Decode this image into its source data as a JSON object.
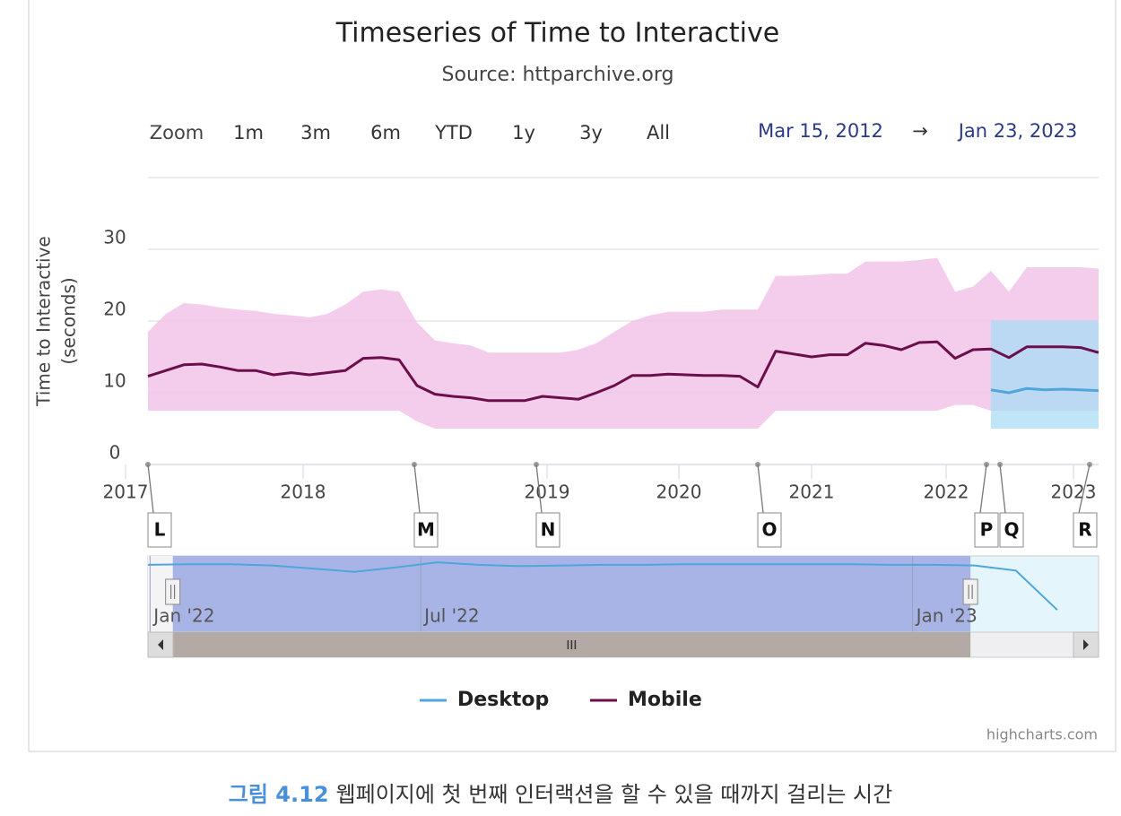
{
  "chart_data": {
    "type": "line",
    "title": "Timeseries of Time to Interactive",
    "subtitle": "Source: httparchive.org",
    "zoom": {
      "label": "Zoom",
      "buttons": [
        "1m",
        "3m",
        "6m",
        "YTD",
        "1y",
        "3y",
        "All"
      ]
    },
    "range": {
      "from": "Mar 15, 2012",
      "sep": "→",
      "to": "Jan 23, 2023"
    },
    "y_label": [
      "Time to Interactive",
      "(seconds)"
    ],
    "ylim": [
      0,
      40
    ],
    "yticks": [
      0,
      10,
      20,
      30
    ],
    "grid": true,
    "xlim": [
      0,
      53
    ],
    "xticks": [
      {
        "value": -1.25,
        "label": "2017"
      },
      {
        "value": 8.65,
        "label": "2018"
      },
      {
        "value": 22.25,
        "label": "2019"
      },
      {
        "value": 29.6,
        "label": "2020"
      },
      {
        "value": 37,
        "label": "2021"
      },
      {
        "value": 44.5,
        "label": "2022"
      },
      {
        "value": 51.6,
        "label": "2023"
      }
    ],
    "series": [
      {
        "name": "Desktop",
        "color": "#4ea6da",
        "band_color": "#a9dcf4",
        "values": [
          null,
          null,
          null,
          null,
          null,
          null,
          null,
          null,
          null,
          null,
          null,
          null,
          null,
          null,
          null,
          null,
          null,
          null,
          null,
          null,
          null,
          null,
          null,
          null,
          null,
          null,
          null,
          null,
          null,
          null,
          null,
          null,
          null,
          null,
          null,
          null,
          null,
          null,
          null,
          null,
          null,
          null,
          null,
          null,
          null,
          null,
          null,
          10.4,
          10,
          10.6,
          10.4,
          10.5,
          10.4,
          10.3
        ],
        "high": [
          null,
          null,
          null,
          null,
          null,
          null,
          null,
          null,
          null,
          null,
          null,
          null,
          null,
          null,
          null,
          null,
          null,
          null,
          null,
          null,
          null,
          null,
          null,
          null,
          null,
          null,
          null,
          null,
          null,
          null,
          null,
          null,
          null,
          null,
          null,
          null,
          null,
          null,
          null,
          null,
          null,
          null,
          null,
          null,
          null,
          null,
          null,
          20.1,
          20.1,
          20.1,
          20.1,
          20.1,
          20.1,
          20.1
        ],
        "low": [
          null,
          null,
          null,
          null,
          null,
          null,
          null,
          null,
          null,
          null,
          null,
          null,
          null,
          null,
          null,
          null,
          null,
          null,
          null,
          null,
          null,
          null,
          null,
          null,
          null,
          null,
          null,
          null,
          null,
          null,
          null,
          null,
          null,
          null,
          null,
          null,
          null,
          null,
          null,
          null,
          null,
          null,
          null,
          null,
          null,
          null,
          null,
          5,
          5,
          5,
          5,
          5,
          5,
          5
        ]
      },
      {
        "name": "Mobile",
        "color": "#6b0f4c",
        "band_color": "#f2c4ea",
        "values": [
          12.3,
          13.1,
          13.9,
          14,
          13.6,
          13.1,
          13.1,
          12.5,
          12.8,
          12.5,
          12.8,
          13.1,
          14.8,
          14.9,
          14.6,
          11,
          9.8,
          9.5,
          9.3,
          8.9,
          8.9,
          8.9,
          9.5,
          9.3,
          9.1,
          10,
          11,
          12.4,
          12.4,
          12.6,
          12.5,
          12.4,
          12.4,
          12.3,
          10.8,
          15.8,
          15.4,
          15,
          15.3,
          15.3,
          16.9,
          16.6,
          16,
          17,
          17.1,
          14.8,
          16,
          16.1,
          14.9,
          16.4,
          16.4,
          16.4,
          16.3,
          15.6
        ],
        "high": [
          18.5,
          21,
          22.5,
          22.3,
          21.9,
          21.6,
          21.4,
          21,
          20.8,
          20.5,
          21,
          22.3,
          24.1,
          24.4,
          24.1,
          19.8,
          17.3,
          16.9,
          16.6,
          15.6,
          15.6,
          15.6,
          15.6,
          15.6,
          16,
          16.9,
          18.5,
          20,
          20.8,
          21.3,
          21.3,
          21.3,
          21.6,
          21.6,
          21.6,
          26.3,
          26.3,
          26.4,
          26.6,
          26.6,
          28.3,
          28.3,
          28.3,
          28.5,
          28.8,
          24.1,
          24.8,
          27,
          24.1,
          27.5,
          27.5,
          27.5,
          27.5,
          27.3
        ],
        "low": [
          7.5,
          7.5,
          7.5,
          7.5,
          7.5,
          7.5,
          7.5,
          7.5,
          7.5,
          7.5,
          7.5,
          7.5,
          7.5,
          7.5,
          7.5,
          6,
          5,
          5,
          5,
          5,
          5,
          5,
          5,
          5,
          5,
          5,
          5,
          5,
          5,
          5,
          5,
          5,
          5,
          5,
          5,
          7.5,
          7.5,
          7.5,
          7.5,
          7.5,
          7.5,
          7.5,
          7.5,
          7.5,
          7.5,
          8.3,
          8.3,
          7.5,
          7.5,
          7.5,
          7.5,
          7.5,
          7.5,
          7.5
        ]
      }
    ],
    "flags": [
      {
        "label": "L",
        "x": 0
      },
      {
        "label": "M",
        "x": 14.85
      },
      {
        "label": "N",
        "x": 21.65
      },
      {
        "label": "O",
        "x": 34
      },
      {
        "label": "P",
        "x": 46.75
      },
      {
        "label": "Q",
        "x": 47.5
      },
      {
        "label": "R",
        "x": 52.5
      }
    ],
    "navigator": {
      "color": "#4ea6da",
      "xlim": [
        0,
        23
      ],
      "ylim": [
        0,
        12
      ],
      "selected": [
        0.6,
        19.9
      ],
      "xticks": [
        {
          "value": 0.05,
          "label": "Jan '22"
        },
        {
          "value": 6.6,
          "label": "Jul '22"
        },
        {
          "value": 18.5,
          "label": "Jan '23"
        }
      ],
      "values": [
        10.6,
        10.7,
        10.7,
        10.5,
        10,
        9.5,
        10.2,
        11,
        10.6,
        10.4,
        10.5,
        10.6,
        10.6,
        10.7,
        10.7,
        10.7,
        10.7,
        10.7,
        10.6,
        10.6,
        10.5,
        9.7,
        3.5
      ]
    },
    "credits": "highcharts.com"
  },
  "caption": {
    "label": "그림 4.12",
    "text": "웹페이지에 첫 번째 인터랙션을 할 수 있을 때까지 걸리는 시간"
  }
}
